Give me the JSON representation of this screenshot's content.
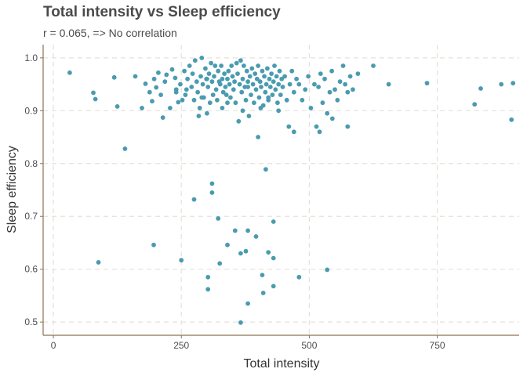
{
  "chart_data": {
    "type": "scatter",
    "title": "Total intensity vs Sleep efficiency",
    "subtitle": "r = 0.065, => No correlation",
    "xlabel": "Total intensity",
    "ylabel": "Sleep efficiency",
    "xlim": [
      -20,
      910
    ],
    "ylim": [
      0.475,
      1.025
    ],
    "x_ticks": [
      0,
      250,
      500,
      750
    ],
    "y_ticks": [
      0.5,
      0.6,
      0.7,
      0.8,
      0.9,
      1.0
    ],
    "x_tick_labels": [
      "0",
      "250",
      "500",
      "750"
    ],
    "y_tick_labels": [
      "0.5",
      "0.6",
      "0.7",
      "0.8",
      "0.9",
      "1.0"
    ],
    "grid": true,
    "legend": "none",
    "colors": {
      "point": "#4a9bb0",
      "axis": "#8b7355",
      "grid": "#e6e0da",
      "text": "#4a4a4a"
    },
    "points": [
      [
        32,
        0.972
      ],
      [
        78,
        0.934
      ],
      [
        82,
        0.922
      ],
      [
        119,
        0.963
      ],
      [
        125,
        0.908
      ],
      [
        160,
        0.965
      ],
      [
        173,
        0.905
      ],
      [
        180,
        0.951
      ],
      [
        188,
        0.935
      ],
      [
        193,
        0.918
      ],
      [
        197,
        0.96
      ],
      [
        201,
        0.944
      ],
      [
        205,
        0.972
      ],
      [
        210,
        0.93
      ],
      [
        214,
        0.887
      ],
      [
        218,
        0.955
      ],
      [
        221,
        0.968
      ],
      [
        228,
        0.905
      ],
      [
        232,
        0.978
      ],
      [
        238,
        0.962
      ],
      [
        240,
        0.94
      ],
      [
        244,
        0.916
      ],
      [
        248,
        0.95
      ],
      [
        252,
        0.92
      ],
      [
        256,
        0.975
      ],
      [
        258,
        0.93
      ],
      [
        262,
        0.96
      ],
      [
        266,
        0.985
      ],
      [
        270,
        0.945
      ],
      [
        272,
        0.97
      ],
      [
        275,
        0.92
      ],
      [
        277,
        0.995
      ],
      [
        280,
        0.955
      ],
      [
        282,
        0.935
      ],
      [
        284,
        0.89
      ],
      [
        286,
        0.905
      ],
      [
        288,
        0.965
      ],
      [
        290,
        1.0
      ],
      [
        292,
        0.95
      ],
      [
        294,
        0.925
      ],
      [
        297,
        0.98
      ],
      [
        299,
        0.96
      ],
      [
        300,
        0.895
      ],
      [
        302,
        0.945
      ],
      [
        304,
        0.97
      ],
      [
        306,
        0.915
      ],
      [
        308,
        0.99
      ],
      [
        310,
        0.955
      ],
      [
        312,
        0.93
      ],
      [
        314,
        0.965
      ],
      [
        316,
        0.985
      ],
      [
        318,
        0.94
      ],
      [
        320,
        0.92
      ],
      [
        322,
        0.975
      ],
      [
        324,
        0.955
      ],
      [
        326,
        0.95
      ],
      [
        328,
        0.985
      ],
      [
        330,
        0.96
      ],
      [
        332,
        0.935
      ],
      [
        334,
        0.97
      ],
      [
        336,
        0.945
      ],
      [
        338,
        0.93
      ],
      [
        340,
        0.96
      ],
      [
        342,
        0.975
      ],
      [
        344,
        0.95
      ],
      [
        346,
        0.925
      ],
      [
        348,
        0.985
      ],
      [
        350,
        0.965
      ],
      [
        352,
        0.94
      ],
      [
        354,
        0.955
      ],
      [
        356,
        0.915
      ],
      [
        358,
        0.99
      ],
      [
        360,
        0.97
      ],
      [
        362,
        0.88
      ],
      [
        364,
        0.95
      ],
      [
        366,
        0.995
      ],
      [
        368,
        0.935
      ],
      [
        370,
        0.96
      ],
      [
        372,
        0.985
      ],
      [
        374,
        0.945
      ],
      [
        376,
        0.92
      ],
      [
        378,
        0.975
      ],
      [
        380,
        0.955
      ],
      [
        382,
        0.89
      ],
      [
        384,
        0.965
      ],
      [
        386,
        0.93
      ],
      [
        388,
        0.98
      ],
      [
        390,
        0.95
      ],
      [
        392,
        0.915
      ],
      [
        394,
        0.97
      ],
      [
        396,
        0.94
      ],
      [
        398,
        0.96
      ],
      [
        400,
        0.985
      ],
      [
        402,
        0.925
      ],
      [
        404,
        0.955
      ],
      [
        406,
        0.945
      ],
      [
        408,
        0.975
      ],
      [
        410,
        0.91
      ],
      [
        412,
        0.965
      ],
      [
        414,
        0.935
      ],
      [
        416,
        0.95
      ],
      [
        418,
        0.98
      ],
      [
        420,
        0.92
      ],
      [
        422,
        0.96
      ],
      [
        424,
        0.945
      ],
      [
        426,
        0.97
      ],
      [
        428,
        0.93
      ],
      [
        430,
        0.955
      ],
      [
        432,
        0.985
      ],
      [
        434,
        0.94
      ],
      [
        436,
        0.965
      ],
      [
        438,
        0.915
      ],
      [
        440,
        0.95
      ],
      [
        442,
        0.975
      ],
      [
        444,
        0.93
      ],
      [
        446,
        0.96
      ],
      [
        448,
        0.945
      ],
      [
        452,
        0.965
      ],
      [
        456,
        0.92
      ],
      [
        462,
        0.95
      ],
      [
        466,
        0.975
      ],
      [
        470,
        0.935
      ],
      [
        475,
        0.96
      ],
      [
        480,
        0.95
      ],
      [
        486,
        0.92
      ],
      [
        492,
        0.94
      ],
      [
        498,
        0.965
      ],
      [
        503,
        0.905
      ],
      [
        510,
        0.95
      ],
      [
        514,
        0.87
      ],
      [
        518,
        0.945
      ],
      [
        522,
        0.97
      ],
      [
        526,
        0.915
      ],
      [
        530,
        0.96
      ],
      [
        535,
        0.895
      ],
      [
        540,
        0.935
      ],
      [
        544,
        0.975
      ],
      [
        550,
        0.94
      ],
      [
        555,
        0.92
      ],
      [
        560,
        0.955
      ],
      [
        566,
        0.985
      ],
      [
        570,
        0.95
      ],
      [
        575,
        0.935
      ],
      [
        580,
        0.965
      ],
      [
        585,
        0.94
      ],
      [
        595,
        0.97
      ],
      [
        625,
        0.985
      ],
      [
        655,
        0.95
      ],
      [
        730,
        0.952
      ],
      [
        823,
        0.912
      ],
      [
        835,
        0.942
      ],
      [
        875,
        0.95
      ],
      [
        898,
        0.952
      ],
      [
        895,
        0.883
      ],
      [
        240,
        0.935
      ],
      [
        300,
        0.96
      ],
      [
        340,
        0.915
      ],
      [
        380,
        0.945
      ],
      [
        420,
        0.925
      ],
      [
        460,
        0.87
      ],
      [
        520,
        0.86
      ],
      [
        545,
        0.885
      ],
      [
        575,
        0.87
      ],
      [
        260,
        0.94
      ],
      [
        290,
        0.925
      ],
      [
        330,
        0.905
      ],
      [
        370,
        0.9
      ],
      [
        405,
        0.905
      ],
      [
        440,
        0.9
      ],
      [
        470,
        0.86
      ],
      [
        400,
        0.85
      ],
      [
        140,
        0.828
      ],
      [
        415,
        0.789
      ],
      [
        310,
        0.762
      ],
      [
        310,
        0.745
      ],
      [
        275,
        0.732
      ],
      [
        322,
        0.696
      ],
      [
        430,
        0.69
      ],
      [
        355,
        0.673
      ],
      [
        380,
        0.673
      ],
      [
        396,
        0.662
      ],
      [
        340,
        0.646
      ],
      [
        196,
        0.646
      ],
      [
        88,
        0.613
      ],
      [
        250,
        0.617
      ],
      [
        366,
        0.63
      ],
      [
        376,
        0.634
      ],
      [
        420,
        0.632
      ],
      [
        430,
        0.621
      ],
      [
        325,
        0.611
      ],
      [
        535,
        0.599
      ],
      [
        408,
        0.589
      ],
      [
        480,
        0.585
      ],
      [
        302,
        0.585
      ],
      [
        430,
        0.568
      ],
      [
        302,
        0.562
      ],
      [
        410,
        0.555
      ],
      [
        380,
        0.535
      ],
      [
        366,
        0.499
      ]
    ]
  }
}
